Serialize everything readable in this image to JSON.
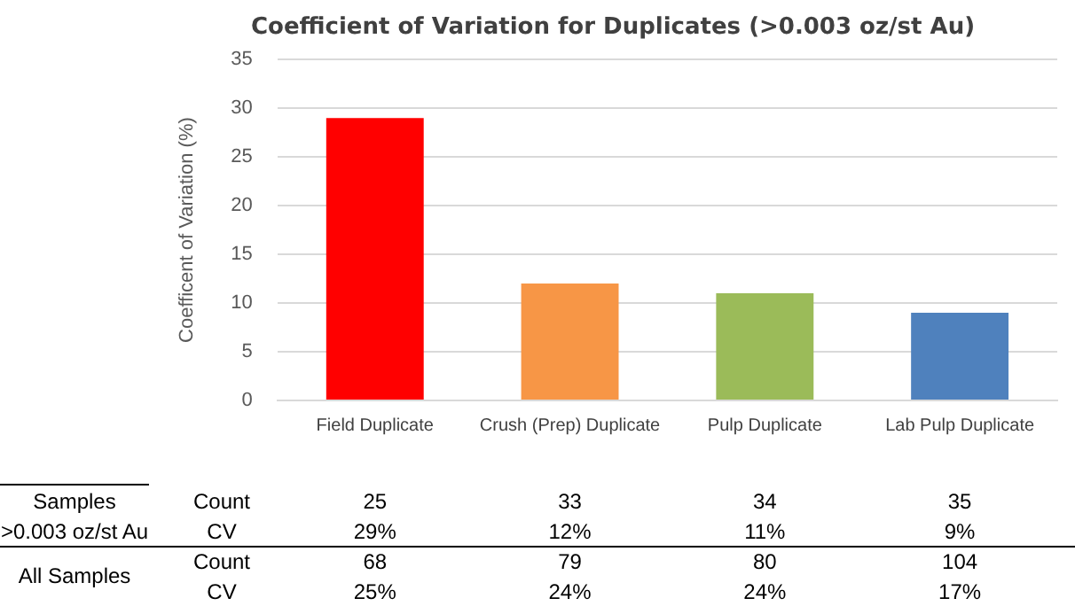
{
  "chart_data": {
    "type": "bar",
    "title": "Coefficient of Variation for Duplicates (>0.003 oz/st Au)",
    "ylabel": "Coefficent of Variation (%)",
    "categories": [
      "Field Duplicate",
      "Crush (Prep) Duplicate",
      "Pulp Duplicate",
      "Lab Pulp Duplicate"
    ],
    "values": [
      29,
      12,
      11,
      9
    ],
    "colors": [
      "#ff0000",
      "#f79646",
      "#9bbb59",
      "#4f81bd"
    ],
    "value_labels": [
      "29%",
      "12%",
      "11%",
      "9%"
    ],
    "ylim": [
      0,
      35
    ],
    "yticks": [
      0,
      5,
      10,
      15,
      20,
      25,
      30,
      35
    ],
    "grid": "y",
    "annotations": [
      "Samples",
      ">0.003 oz/st Au",
      "Count",
      "CV",
      "25",
      "33",
      "34",
      "35",
      "All Samples",
      "Count",
      "68",
      "79",
      "80",
      "104",
      "CV",
      "25%",
      "24%",
      "24%",
      "17%"
    ]
  }
}
